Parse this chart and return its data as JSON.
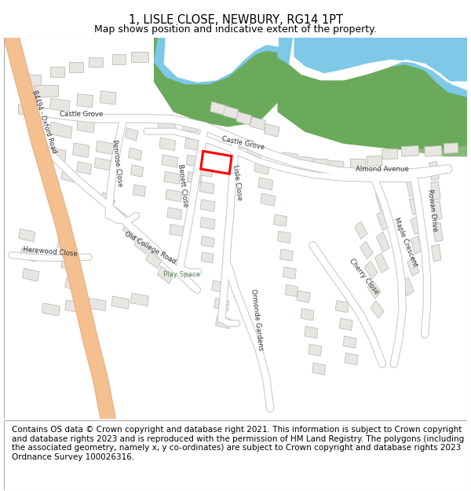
{
  "title_line1": "1, LISLE CLOSE, NEWBURY, RG14 1PT",
  "title_line2": "Map shows position and indicative extent of the property.",
  "title_fontsize": 10.5,
  "subtitle_fontsize": 9.0,
  "copyright_text": "Contains OS data © Crown copyright and database right 2021. This information is subject to Crown copyright and database rights 2023 and is reproduced with the permission of HM Land Registry. The polygons (including the associated geometry, namely x, y co-ordinates) are subject to Crown copyright and database rights 2023 Ordnance Survey 100026316.",
  "copyright_fontsize": 7.5,
  "map_bg_color": "#ffffff",
  "road_outline_color": "#c8c8c8",
  "road_fill_color": "#ffffff",
  "building_fill": "#e8e6e2",
  "building_outline": "#c0bdb8",
  "green_color": "#6aaa5a",
  "water_color": "#7ec8e8",
  "highlight_color": "#ff0000",
  "b4494_fill": "#f5c090",
  "b4494_outline": "#e8a878",
  "fig_bg": "#ffffff",
  "map_border_color": "#aaaaaa",
  "label_color": "#333333"
}
